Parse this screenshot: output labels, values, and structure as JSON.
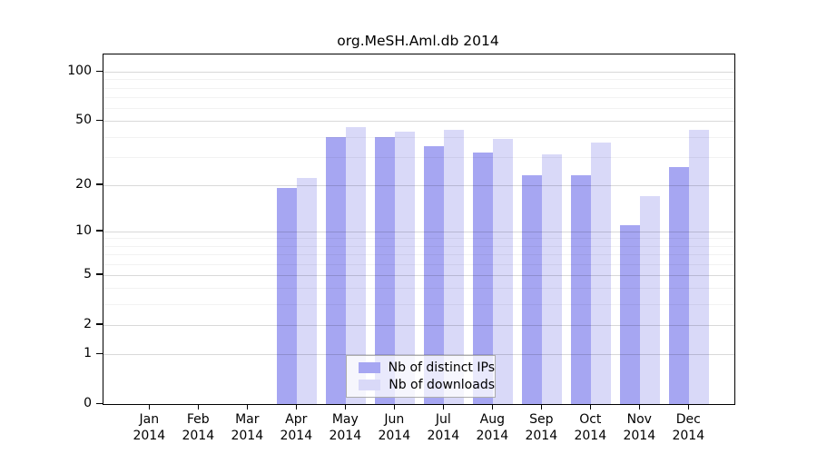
{
  "title": "org.MeSH.Aml.db 2014",
  "chart_data": {
    "type": "bar",
    "title": "org.MeSH.Aml.db 2014",
    "categories": [
      "Jan 2014",
      "Feb 2014",
      "Mar 2014",
      "Apr 2014",
      "May 2014",
      "Jun 2014",
      "Jul 2014",
      "Aug 2014",
      "Sep 2014",
      "Oct 2014",
      "Nov 2014",
      "Dec 2014"
    ],
    "series": [
      {
        "name": "Nb of distinct IPs",
        "color": "#a6a6f2",
        "values": [
          0,
          0,
          0,
          19,
          40,
          40,
          35,
          32,
          23,
          23,
          11,
          26
        ]
      },
      {
        "name": "Nb of downloads",
        "color": "#d9d9f8",
        "values": [
          0,
          0,
          0,
          22,
          46,
          43,
          44,
          39,
          31,
          37,
          17,
          44
        ]
      }
    ],
    "xlabel": "",
    "ylabel": "",
    "y_axis": {
      "scale": "log10(1+x)",
      "tick_values": [
        0,
        1,
        2,
        5,
        10,
        20,
        50,
        100
      ],
      "tick_labels": [
        "0",
        "1",
        "2",
        "5",
        "10",
        "20",
        "50",
        "100"
      ],
      "minor_gridline_values": [
        3,
        4,
        6,
        7,
        8,
        9,
        30,
        40,
        60,
        70,
        80,
        90
      ],
      "range_top_value": 130
    },
    "grid": true,
    "legend_position": "bottom-center",
    "colors": {
      "bar_distinct_ips": "#a6a6f2",
      "bar_downloads": "#d9d9f8",
      "major_gridline": "#d8d8d8",
      "minor_gridline": "#f1f1f1",
      "axis": "#000000",
      "background": "#ffffff"
    }
  }
}
